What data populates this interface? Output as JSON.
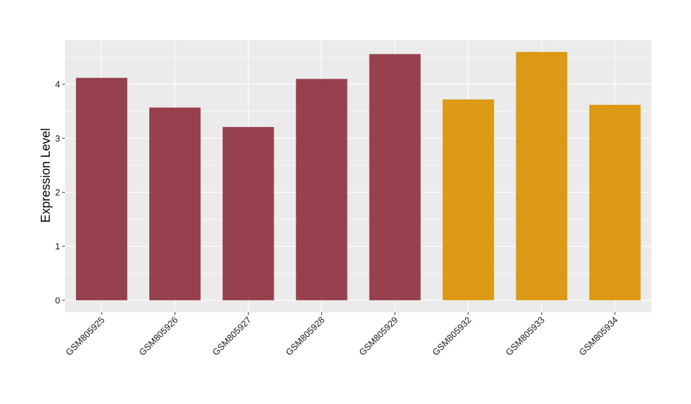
{
  "chart_data": {
    "type": "bar",
    "title": "",
    "xlabel": "",
    "ylabel": "Expression Level",
    "categories": [
      "GSM805925",
      "GSM805926",
      "GSM805927",
      "GSM805928",
      "GSM805929",
      "GSM805932",
      "GSM805933",
      "GSM805934"
    ],
    "values": [
      4.12,
      3.57,
      3.21,
      4.1,
      4.56,
      3.72,
      4.6,
      3.62
    ],
    "bar_colors": [
      "#98414e",
      "#98414e",
      "#98414e",
      "#98414e",
      "#98414e",
      "#dc9914",
      "#dc9914",
      "#dc9914"
    ],
    "ylim": [
      -0.22,
      4.82
    ],
    "yticks": [
      0,
      1,
      2,
      3,
      4
    ],
    "grid": true,
    "legend": "none",
    "panel_background": "#ebebeb",
    "gridline_color": "#ffffff"
  }
}
